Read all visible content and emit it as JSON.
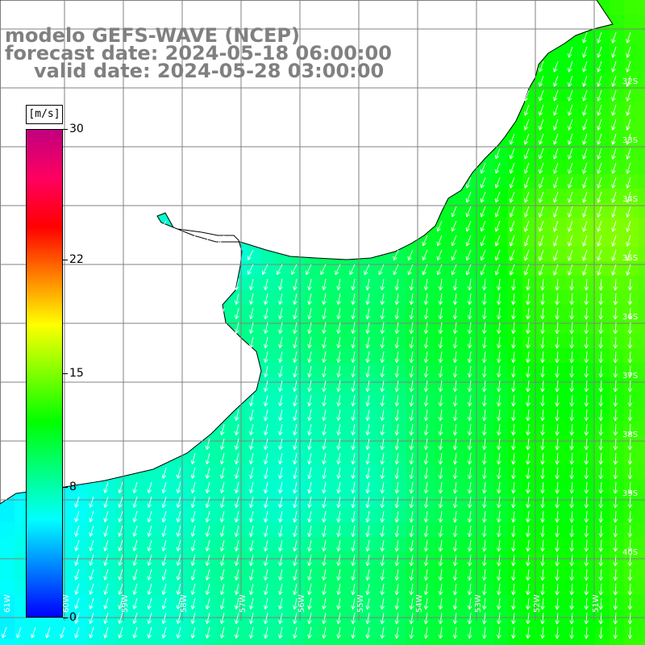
{
  "title": {
    "line1": "modelo GEFS-WAVE (NCEP)",
    "line2": "forecast date: 2024-05-18 06:00:00",
    "line3": "valid date: 2024-05-28 03:00:00"
  },
  "colorbar": {
    "unit": "[m/s]",
    "ticks": [
      {
        "label": "30",
        "value": 30
      },
      {
        "label": "22",
        "value": 22
      },
      {
        "label": "15",
        "value": 15
      },
      {
        "label": "8",
        "value": 8
      },
      {
        "label": "0",
        "value": 0
      }
    ],
    "colors": [
      "#0000ff",
      "#0080ff",
      "#00ffff",
      "#00ff80",
      "#00ff00",
      "#80ff00",
      "#ffff00",
      "#ff8000",
      "#ff0000",
      "#ff0060",
      "#c0007f"
    ]
  },
  "map": {
    "land_color": "#ffffff",
    "coast_color": "#000000",
    "grid_color": "#808080",
    "arrow_color": "#ffffff",
    "longitude_labels": [
      "61W",
      "60W",
      "59W",
      "58W",
      "57W",
      "56W",
      "55W",
      "54W",
      "53W",
      "52W",
      "51W"
    ],
    "latitude_labels": [
      "32S",
      "33S",
      "34S",
      "35S",
      "36S",
      "37S",
      "38S",
      "39S",
      "40S"
    ]
  }
}
